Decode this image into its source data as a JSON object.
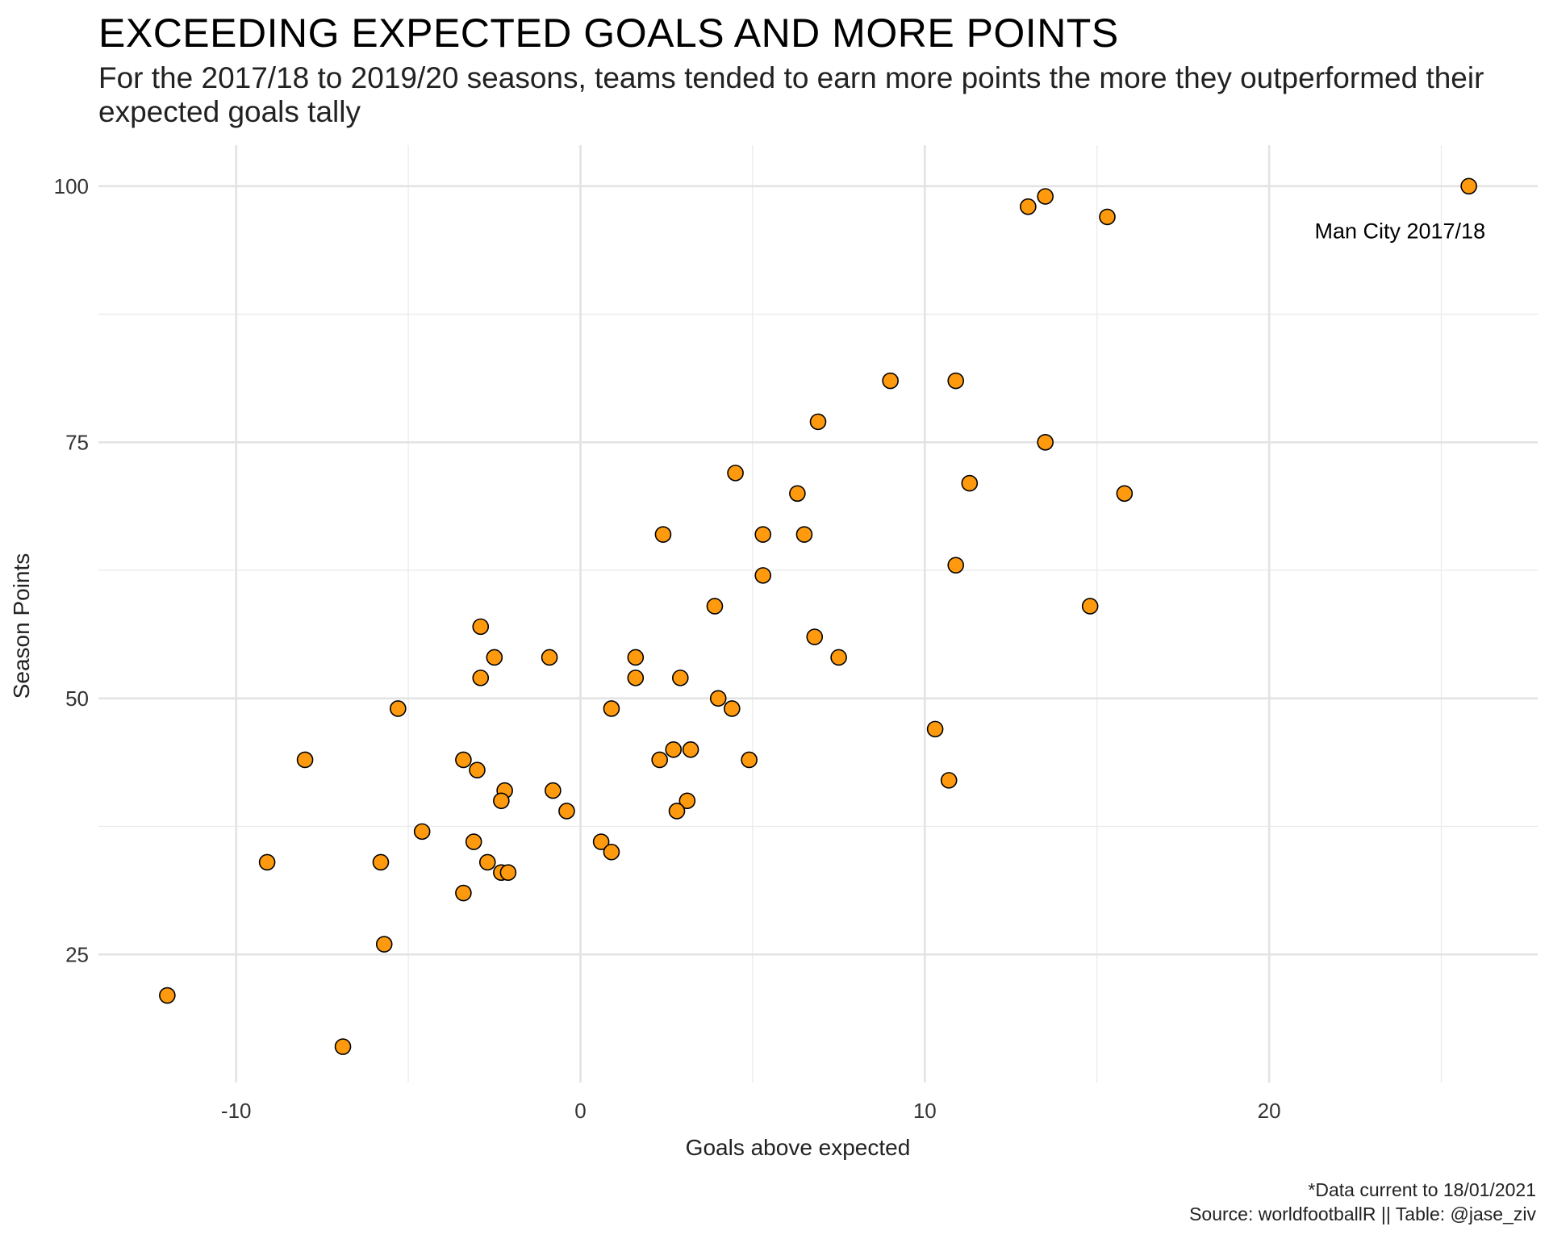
{
  "chart_data": {
    "type": "scatter",
    "title": "EXCEEDING EXPECTED GOALS AND MORE POINTS",
    "subtitle": "For the 2017/18 to 2019/20 seasons, teams tended to earn more points the more they outperformed their expected goals tally",
    "xlabel": "Goals above expected",
    "ylabel": "Season Points",
    "xlim": [
      -14,
      27.8
    ],
    "ylim": [
      12.5,
      104
    ],
    "x_ticks": [
      -10,
      0,
      10,
      20
    ],
    "x_minor": [
      -5,
      5,
      15,
      25
    ],
    "y_ticks": [
      25,
      50,
      75,
      100
    ],
    "y_minor": [
      37.5,
      62.5,
      87.5
    ],
    "grid": true,
    "point_color": "#FF9A0E",
    "point_stroke": "#000000",
    "annotations": [
      {
        "text": "Man City 2017/18",
        "x": 23.8,
        "y": 95.6,
        "anchor": "middle"
      }
    ],
    "points": [
      {
        "x": 25.8,
        "y": 100
      },
      {
        "x": 13.5,
        "y": 99
      },
      {
        "x": 13.0,
        "y": 98
      },
      {
        "x": 15.3,
        "y": 97
      },
      {
        "x": 9.0,
        "y": 81
      },
      {
        "x": 10.9,
        "y": 81
      },
      {
        "x": 6.9,
        "y": 77
      },
      {
        "x": 13.5,
        "y": 75
      },
      {
        "x": 4.5,
        "y": 72
      },
      {
        "x": 11.3,
        "y": 71
      },
      {
        "x": 6.3,
        "y": 70
      },
      {
        "x": 15.8,
        "y": 70
      },
      {
        "x": 2.4,
        "y": 66
      },
      {
        "x": 5.3,
        "y": 66
      },
      {
        "x": 6.5,
        "y": 66
      },
      {
        "x": 10.9,
        "y": 63
      },
      {
        "x": 5.3,
        "y": 62
      },
      {
        "x": 3.9,
        "y": 59
      },
      {
        "x": 14.8,
        "y": 59
      },
      {
        "x": -2.9,
        "y": 57
      },
      {
        "x": 6.8,
        "y": 56
      },
      {
        "x": -2.5,
        "y": 54
      },
      {
        "x": -0.9,
        "y": 54
      },
      {
        "x": 1.6,
        "y": 54
      },
      {
        "x": 7.5,
        "y": 54
      },
      {
        "x": -2.9,
        "y": 52
      },
      {
        "x": 1.6,
        "y": 52
      },
      {
        "x": 2.9,
        "y": 52
      },
      {
        "x": 4.0,
        "y": 50
      },
      {
        "x": -5.3,
        "y": 49
      },
      {
        "x": 0.9,
        "y": 49
      },
      {
        "x": 4.4,
        "y": 49
      },
      {
        "x": 10.3,
        "y": 47
      },
      {
        "x": 2.7,
        "y": 45
      },
      {
        "x": 3.2,
        "y": 45
      },
      {
        "x": -8.0,
        "y": 44
      },
      {
        "x": -3.4,
        "y": 44
      },
      {
        "x": 2.3,
        "y": 44
      },
      {
        "x": 4.9,
        "y": 44
      },
      {
        "x": -3.0,
        "y": 43
      },
      {
        "x": 10.7,
        "y": 42
      },
      {
        "x": -2.2,
        "y": 41
      },
      {
        "x": -0.8,
        "y": 41
      },
      {
        "x": -2.3,
        "y": 40
      },
      {
        "x": 3.1,
        "y": 40
      },
      {
        "x": -0.4,
        "y": 39
      },
      {
        "x": 2.8,
        "y": 39
      },
      {
        "x": -4.6,
        "y": 37
      },
      {
        "x": -3.1,
        "y": 36
      },
      {
        "x": 0.6,
        "y": 36
      },
      {
        "x": 0.9,
        "y": 35
      },
      {
        "x": -9.1,
        "y": 34
      },
      {
        "x": -5.8,
        "y": 34
      },
      {
        "x": -2.7,
        "y": 34
      },
      {
        "x": -2.3,
        "y": 33
      },
      {
        "x": -2.1,
        "y": 33
      },
      {
        "x": -3.4,
        "y": 31
      },
      {
        "x": -5.7,
        "y": 26
      },
      {
        "x": -12.0,
        "y": 21
      },
      {
        "x": -6.9,
        "y": 16
      }
    ]
  },
  "caption": {
    "line1": "*Data current to 18/01/2021",
    "line2": "Source: worldfootballR  ||  Table: @jase_ziv"
  }
}
